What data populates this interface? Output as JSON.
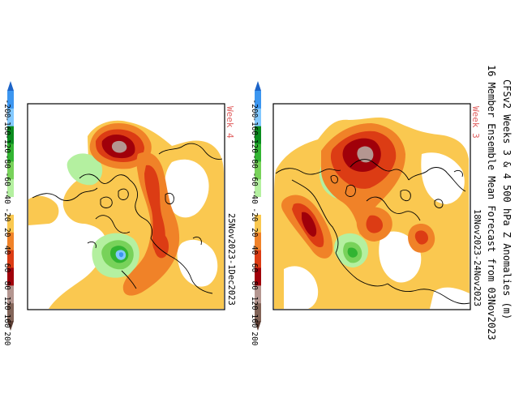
{
  "title_line1": "CFSv2 Weeks 3 & 4 500 hPa Z Anomalies (m)",
  "title_line2": "16 Member Ensemble Mean Forecast from 03Nov2023",
  "panels": [
    {
      "week_label": "Week 3",
      "dates": "18Nov2023-24Nov2023"
    },
    {
      "week_label": "Week 4",
      "dates": "25Nov2023-1Dec2023"
    }
  ],
  "colorbar": {
    "labels": [
      "-200",
      "-160",
      "-120",
      "-80",
      "-60",
      "-40",
      "-20",
      "20",
      "40",
      "60",
      "80",
      "120",
      "160",
      "200"
    ],
    "colors": [
      "#1c64c8",
      "#3c96f0",
      "#82c8ff",
      "#0a8c1e",
      "#32b432",
      "#78d25a",
      "#b4f0a0",
      "#ffffff",
      "#fac850",
      "#f08228",
      "#dc3c14",
      "#a0000a",
      "#b49690",
      "#826458",
      "#5a3c32"
    ]
  }
}
